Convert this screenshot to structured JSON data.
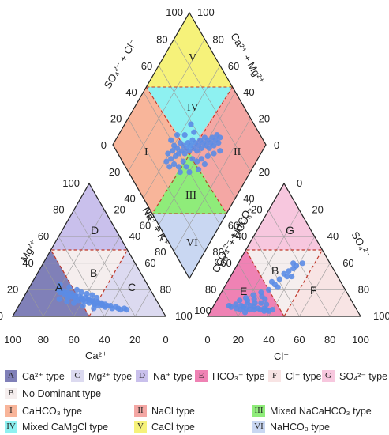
{
  "colors": {
    "A": "#8080b8",
    "B": "#f5eeee",
    "C": "#dcdaf0",
    "D": "#c9c0ec",
    "E": "#ef82b4",
    "F": "#f8e4e4",
    "G": "#f7c7de",
    "I": "#f8b59a",
    "II": "#f4a7a4",
    "III": "#8fec7a",
    "IV": "#8ef1f1",
    "V": "#f6f27a",
    "VI": "#c9d7f2",
    "grid": "#9a9a9a",
    "outline": "#222222",
    "zone_border": "#c0392b",
    "point": "#5b8ce6"
  },
  "cation_triangle": {
    "zones": {
      "A": "A",
      "B": "B",
      "C": "C",
      "D": "D"
    },
    "ticks_bottom": [
      "100",
      "80",
      "60",
      "40",
      "20",
      "0"
    ],
    "ticks_left": [
      "0",
      "20",
      "40",
      "60",
      "80",
      "100"
    ],
    "ticks_right": [
      "20",
      "40",
      "60",
      "80",
      "100"
    ],
    "xlabel": "Ca²⁺",
    "left_label": "Mg²⁺",
    "right_label": "Na⁺ + K⁺",
    "points": [
      [
        0.2,
        0.2
      ],
      [
        0.22,
        0.18
      ],
      [
        0.24,
        0.19
      ],
      [
        0.25,
        0.17
      ],
      [
        0.27,
        0.18
      ],
      [
        0.28,
        0.16
      ],
      [
        0.3,
        0.17
      ],
      [
        0.29,
        0.14
      ],
      [
        0.31,
        0.15
      ],
      [
        0.33,
        0.16
      ],
      [
        0.34,
        0.14
      ],
      [
        0.35,
        0.13
      ],
      [
        0.36,
        0.15
      ],
      [
        0.37,
        0.12
      ],
      [
        0.38,
        0.14
      ],
      [
        0.39,
        0.13
      ],
      [
        0.4,
        0.12
      ],
      [
        0.41,
        0.14
      ],
      [
        0.42,
        0.11
      ],
      [
        0.43,
        0.13
      ],
      [
        0.44,
        0.12
      ],
      [
        0.45,
        0.1
      ],
      [
        0.46,
        0.12
      ],
      [
        0.47,
        0.11
      ],
      [
        0.48,
        0.1
      ],
      [
        0.49,
        0.09
      ],
      [
        0.5,
        0.11
      ],
      [
        0.51,
        0.1
      ],
      [
        0.52,
        0.08
      ],
      [
        0.53,
        0.1
      ],
      [
        0.54,
        0.09
      ],
      [
        0.55,
        0.08
      ],
      [
        0.56,
        0.09
      ],
      [
        0.57,
        0.07
      ],
      [
        0.58,
        0.08
      ],
      [
        0.6,
        0.08
      ],
      [
        0.62,
        0.06
      ],
      [
        0.64,
        0.07
      ],
      [
        0.66,
        0.06
      ],
      [
        0.68,
        0.05
      ],
      [
        0.7,
        0.06
      ],
      [
        0.72,
        0.05
      ],
      [
        0.26,
        0.22
      ],
      [
        0.32,
        0.2
      ],
      [
        0.36,
        0.18
      ],
      [
        0.4,
        0.17
      ],
      [
        0.44,
        0.16
      ],
      [
        0.48,
        0.14
      ],
      [
        0.24,
        0.13
      ],
      [
        0.3,
        0.11
      ],
      [
        0.35,
        0.1
      ],
      [
        0.42,
        0.08
      ],
      [
        0.5,
        0.06
      ],
      [
        0.19,
        0.24
      ]
    ]
  },
  "anion_triangle": {
    "zones": {
      "E": "E",
      "B": "B",
      "F": "F",
      "G": "G"
    },
    "ticks_bottom": [
      "0",
      "20",
      "40",
      "60",
      "80",
      "100"
    ],
    "ticks_right": [
      "0",
      "20",
      "40",
      "60",
      "80",
      "100"
    ],
    "ticks_left": [
      "80",
      "60",
      "40",
      "20"
    ],
    "ticks_left_low": [
      "100"
    ],
    "xlabel": "Cl⁻",
    "left_label": "CO₃²⁻ + HCO₃⁻",
    "right_label": "SO₄²⁻",
    "points": [
      [
        0.1,
        0.08
      ],
      [
        0.12,
        0.07
      ],
      [
        0.14,
        0.09
      ],
      [
        0.16,
        0.06
      ],
      [
        0.18,
        0.08
      ],
      [
        0.2,
        0.07
      ],
      [
        0.22,
        0.06
      ],
      [
        0.24,
        0.08
      ],
      [
        0.25,
        0.05
      ],
      [
        0.27,
        0.07
      ],
      [
        0.28,
        0.05
      ],
      [
        0.3,
        0.06
      ],
      [
        0.32,
        0.05
      ],
      [
        0.34,
        0.06
      ],
      [
        0.35,
        0.04
      ],
      [
        0.36,
        0.05
      ],
      [
        0.38,
        0.04
      ],
      [
        0.4,
        0.05
      ],
      [
        0.15,
        0.12
      ],
      [
        0.18,
        0.14
      ],
      [
        0.2,
        0.12
      ],
      [
        0.22,
        0.16
      ],
      [
        0.24,
        0.13
      ],
      [
        0.26,
        0.18
      ],
      [
        0.28,
        0.15
      ],
      [
        0.3,
        0.2
      ],
      [
        0.32,
        0.24
      ],
      [
        0.33,
        0.28
      ],
      [
        0.34,
        0.32
      ],
      [
        0.36,
        0.34
      ],
      [
        0.37,
        0.3
      ],
      [
        0.38,
        0.36
      ],
      [
        0.3,
        0.1
      ],
      [
        0.26,
        0.1
      ],
      [
        0.34,
        0.09
      ],
      [
        0.21,
        0.1
      ],
      [
        0.29,
        0.26
      ],
      [
        0.35,
        0.22
      ],
      [
        0.4,
        0.3
      ],
      [
        0.19,
        0.05
      ],
      [
        0.31,
        0.13
      ],
      [
        0.23,
        0.03
      ],
      [
        0.39,
        0.38
      ],
      [
        0.42,
        0.4
      ],
      [
        0.36,
        0.4
      ]
    ]
  },
  "diamond": {
    "zones": {
      "I": "I",
      "II": "II",
      "III": "III",
      "IV": "IV",
      "V": "V",
      "VI": "VI"
    },
    "ticks_upper_left": [
      "100",
      "80",
      "60",
      "40",
      "20",
      "0"
    ],
    "ticks_upper_right": [
      "100",
      "80",
      "60",
      "40",
      "20",
      "0"
    ],
    "ticks_lower_right": [
      "20",
      "40",
      "60",
      "80"
    ],
    "ticks_lower_left": [
      "20",
      "40",
      "60",
      "80"
    ],
    "upper_left_label": "SO₄²⁻ + Cl⁻",
    "upper_right_label": "Ca²⁺ + Mg²⁺",
    "lower_left_label": "Na⁺ + K⁺",
    "lower_right_label": "CO₃²⁻ + HCO₃⁻",
    "points": [
      [
        0.36,
        0.53
      ],
      [
        0.38,
        0.55
      ],
      [
        0.39,
        0.52
      ],
      [
        0.4,
        0.5
      ],
      [
        0.41,
        0.54
      ],
      [
        0.42,
        0.51
      ],
      [
        0.43,
        0.53
      ],
      [
        0.44,
        0.49
      ],
      [
        0.45,
        0.52
      ],
      [
        0.46,
        0.5
      ],
      [
        0.47,
        0.53
      ],
      [
        0.48,
        0.51
      ],
      [
        0.49,
        0.49
      ],
      [
        0.5,
        0.52
      ],
      [
        0.51,
        0.5
      ],
      [
        0.52,
        0.48
      ],
      [
        0.53,
        0.51
      ],
      [
        0.54,
        0.49
      ],
      [
        0.55,
        0.52
      ],
      [
        0.56,
        0.5
      ],
      [
        0.57,
        0.48
      ],
      [
        0.58,
        0.51
      ],
      [
        0.59,
        0.49
      ],
      [
        0.6,
        0.47
      ],
      [
        0.61,
        0.5
      ],
      [
        0.62,
        0.48
      ],
      [
        0.63,
        0.51
      ],
      [
        0.64,
        0.49
      ],
      [
        0.65,
        0.47
      ],
      [
        0.66,
        0.5
      ],
      [
        0.67,
        0.48
      ],
      [
        0.68,
        0.46
      ],
      [
        0.69,
        0.49
      ],
      [
        0.7,
        0.47
      ],
      [
        0.35,
        0.56
      ],
      [
        0.37,
        0.58
      ],
      [
        0.4,
        0.57
      ],
      [
        0.43,
        0.58
      ],
      [
        0.46,
        0.56
      ],
      [
        0.48,
        0.58
      ],
      [
        0.52,
        0.55
      ],
      [
        0.55,
        0.56
      ],
      [
        0.58,
        0.55
      ],
      [
        0.62,
        0.54
      ],
      [
        0.66,
        0.53
      ],
      [
        0.7,
        0.52
      ],
      [
        0.38,
        0.48
      ],
      [
        0.42,
        0.46
      ],
      [
        0.47,
        0.46
      ],
      [
        0.53,
        0.45
      ],
      [
        0.44,
        0.6
      ],
      [
        0.5,
        0.6
      ],
      [
        0.56,
        0.59
      ],
      [
        0.6,
        0.57
      ],
      [
        0.51,
        0.42
      ]
    ]
  },
  "legend": [
    {
      "key": "A",
      "box_text": "A",
      "label": "Ca²⁺ type"
    },
    {
      "key": "C",
      "box_text": "C",
      "label": "Mg²⁺ type"
    },
    {
      "key": "D",
      "box_text": "D",
      "label": "Na⁺ type"
    },
    {
      "key": "E",
      "box_text": "E",
      "label": "HCO₃⁻ type"
    },
    {
      "key": "F",
      "box_text": "F",
      "label": "Cl⁻ type"
    },
    {
      "key": "G",
      "box_text": "G",
      "label": "SO₄²⁻ type"
    },
    {
      "key": "B",
      "box_text": "B",
      "label": "No Dominant type"
    },
    {
      "key": "I",
      "box_text": "I",
      "label": "CaHCO₃ type"
    },
    {
      "key": "II",
      "box_text": "II",
      "label": "NaCl type"
    },
    {
      "key": "III",
      "box_text": "III",
      "label": "Mixed NaCaHCO₃ type"
    },
    {
      "key": "IV",
      "box_text": "IV",
      "label": "Mixed CaMgCl type"
    },
    {
      "key": "V",
      "box_text": "V",
      "label": "CaCl type"
    },
    {
      "key": "VI",
      "box_text": "VI",
      "label": "NaHCO₃ type"
    }
  ]
}
